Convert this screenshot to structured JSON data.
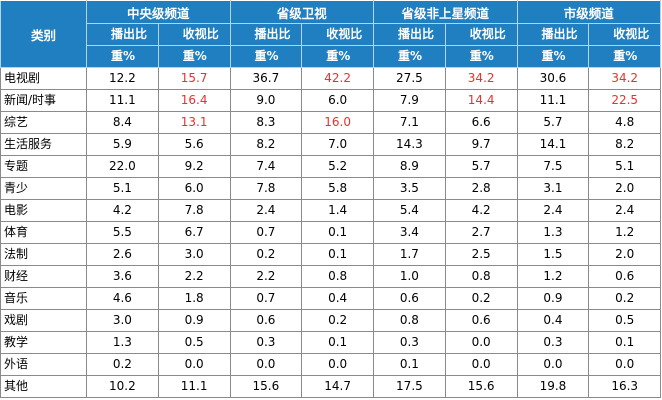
{
  "header": {
    "category_label": "类别",
    "groups": [
      "中央级频道",
      "省级卫视",
      "省级非上星频道",
      "市级频道"
    ],
    "sub_line1": [
      "播出比",
      "收视比",
      "播出比",
      "收视比",
      "播出比",
      "收视比",
      "播出比",
      "收视比"
    ],
    "sub_line2": [
      "重%",
      "重%",
      "重%",
      "重%",
      "重%",
      "重%",
      "重%",
      "重%"
    ]
  },
  "highlight_color": "#e8322e",
  "header_bg": "#1f7fc1",
  "rows": [
    {
      "category": "电视剧",
      "values": [
        "12.2",
        "15.7",
        "36.7",
        "42.2",
        "27.5",
        "34.2",
        "30.6",
        "34.2"
      ],
      "highlight": [
        false,
        true,
        false,
        true,
        false,
        true,
        false,
        true
      ]
    },
    {
      "category": "新闻/时事",
      "values": [
        "11.1",
        "16.4",
        "9.0",
        "6.0",
        "7.9",
        "14.4",
        "11.1",
        "22.5"
      ],
      "highlight": [
        false,
        true,
        false,
        false,
        false,
        true,
        false,
        true
      ]
    },
    {
      "category": "综艺",
      "values": [
        "8.4",
        "13.1",
        "8.3",
        "16.0",
        "7.1",
        "6.6",
        "5.7",
        "4.8"
      ],
      "highlight": [
        false,
        true,
        false,
        true,
        false,
        false,
        false,
        false
      ]
    },
    {
      "category": "生活服务",
      "values": [
        "5.9",
        "5.6",
        "8.2",
        "7.0",
        "14.3",
        "9.7",
        "14.1",
        "8.2"
      ],
      "highlight": [
        false,
        false,
        false,
        false,
        false,
        false,
        false,
        false
      ]
    },
    {
      "category": "专题",
      "values": [
        "22.0",
        "9.2",
        "7.4",
        "5.2",
        "8.9",
        "5.7",
        "7.5",
        "5.1"
      ],
      "highlight": [
        false,
        false,
        false,
        false,
        false,
        false,
        false,
        false
      ]
    },
    {
      "category": "青少",
      "values": [
        "5.1",
        "6.0",
        "7.8",
        "5.8",
        "3.5",
        "2.8",
        "3.1",
        "2.0"
      ],
      "highlight": [
        false,
        false,
        false,
        false,
        false,
        false,
        false,
        false
      ]
    },
    {
      "category": "电影",
      "values": [
        "4.2",
        "7.8",
        "2.4",
        "1.4",
        "5.4",
        "4.2",
        "2.4",
        "2.4"
      ],
      "highlight": [
        false,
        false,
        false,
        false,
        false,
        false,
        false,
        false
      ]
    },
    {
      "category": "体育",
      "values": [
        "5.5",
        "6.7",
        "0.7",
        "0.1",
        "3.4",
        "2.7",
        "1.3",
        "1.2"
      ],
      "highlight": [
        false,
        false,
        false,
        false,
        false,
        false,
        false,
        false
      ]
    },
    {
      "category": "法制",
      "values": [
        "2.6",
        "3.0",
        "0.2",
        "0.1",
        "1.7",
        "2.5",
        "1.5",
        "2.0"
      ],
      "highlight": [
        false,
        false,
        false,
        false,
        false,
        false,
        false,
        false
      ]
    },
    {
      "category": "财经",
      "values": [
        "3.6",
        "2.2",
        "2.2",
        "0.8",
        "1.0",
        "0.8",
        "1.2",
        "0.6"
      ],
      "highlight": [
        false,
        false,
        false,
        false,
        false,
        false,
        false,
        false
      ]
    },
    {
      "category": "音乐",
      "values": [
        "4.6",
        "1.8",
        "0.7",
        "0.4",
        "0.6",
        "0.2",
        "0.9",
        "0.2"
      ],
      "highlight": [
        false,
        false,
        false,
        false,
        false,
        false,
        false,
        false
      ]
    },
    {
      "category": "戏剧",
      "values": [
        "3.0",
        "0.9",
        "0.6",
        "0.2",
        "0.8",
        "0.6",
        "0.4",
        "0.5"
      ],
      "highlight": [
        false,
        false,
        false,
        false,
        false,
        false,
        false,
        false
      ]
    },
    {
      "category": "教学",
      "values": [
        "1.3",
        "0.5",
        "0.3",
        "0.1",
        "0.3",
        "0.0",
        "0.3",
        "0.1"
      ],
      "highlight": [
        false,
        false,
        false,
        false,
        false,
        false,
        false,
        false
      ]
    },
    {
      "category": "外语",
      "values": [
        "0.2",
        "0.0",
        "0.0",
        "0.0",
        "0.1",
        "0.0",
        "0.0",
        "0.0"
      ],
      "highlight": [
        false,
        false,
        false,
        false,
        false,
        false,
        false,
        false
      ]
    },
    {
      "category": "其他",
      "values": [
        "10.2",
        "11.1",
        "15.6",
        "14.7",
        "17.5",
        "15.6",
        "19.8",
        "16.3"
      ],
      "highlight": [
        false,
        false,
        false,
        false,
        false,
        false,
        false,
        false
      ]
    }
  ]
}
